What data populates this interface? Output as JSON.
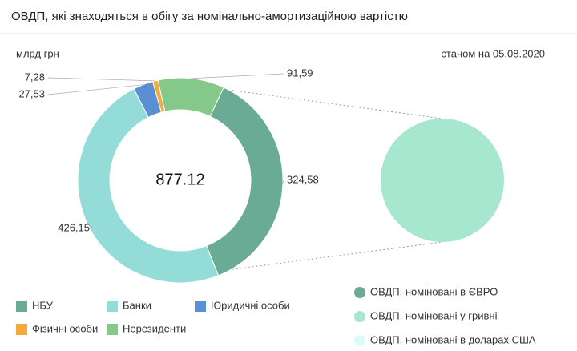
{
  "chart_data": [
    {
      "type": "donut",
      "title": "ОВДП, які знаходяться в обігу за номінально-амортизаційною вартістю",
      "unit": "млрд грн",
      "date_note": "станом на 05.08.2020",
      "total": "877.12",
      "categories": [
        "НБУ",
        "Банки",
        "Юридичні особи",
        "Фізичні особи",
        "Нерезиденти"
      ],
      "values": [
        324.58,
        426.15,
        27.53,
        7.28,
        91.59
      ],
      "value_labels": [
        "324,58",
        "426,15",
        "27,53",
        "7,28",
        "91,59"
      ],
      "colors": [
        "#6aab96",
        "#94dcd8",
        "#5b8fd1",
        "#f5a93c",
        "#85c98a"
      ]
    },
    {
      "type": "pie",
      "categories": [
        "ОВДП, номіновані в ЄВРО",
        "ОВДП, номіновані у гривні",
        "ОВДП, номіновані в доларах США"
      ],
      "values": [
        0,
        100,
        0
      ],
      "colors": [
        "#6aab96",
        "#a7e6cf",
        "#dcfafa"
      ]
    }
  ]
}
